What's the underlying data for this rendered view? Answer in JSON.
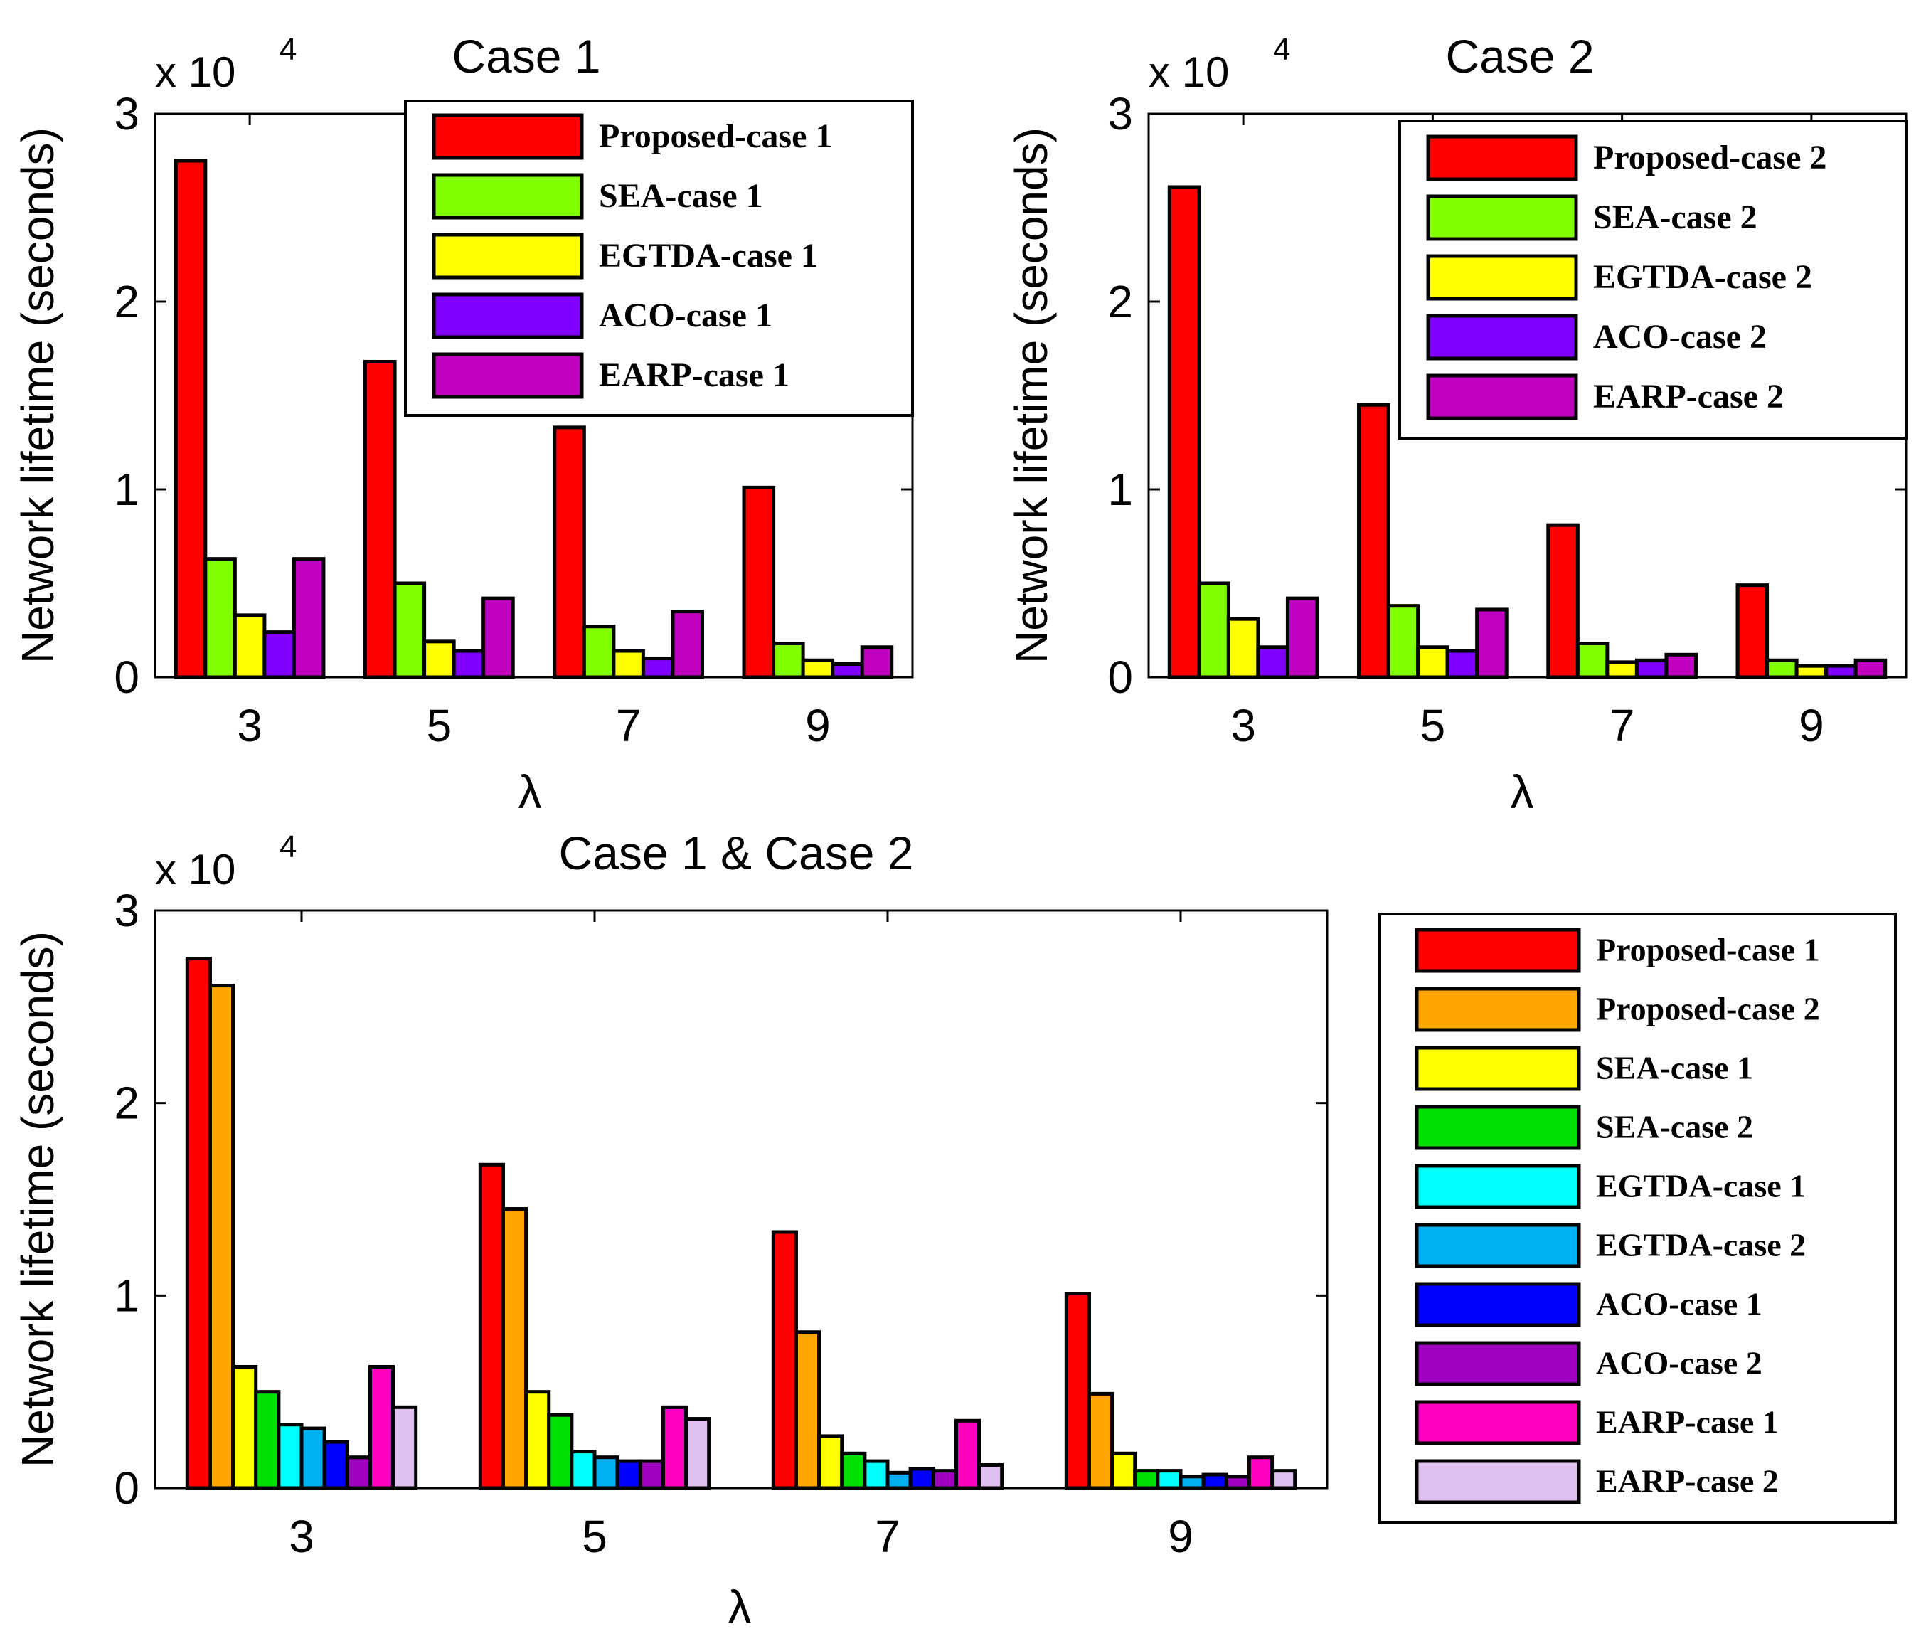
{
  "chart_data": [
    {
      "type": "bar",
      "title": "Case 1",
      "xlabel": "λ",
      "ylabel": "Network lifetime (seconds)",
      "exponent_label": "x 10",
      "exponent_power": "4",
      "ylim": [
        0,
        3
      ],
      "yticks": [
        "0",
        "1",
        "2",
        "3"
      ],
      "categories": [
        "3",
        "5",
        "7",
        "9"
      ],
      "series": [
        {
          "name": "Proposed-case 1",
          "color": "#ff0000",
          "values": [
            2.75,
            1.68,
            1.33,
            1.01
          ]
        },
        {
          "name": "SEA-case 1",
          "color": "#80ff00",
          "values": [
            0.63,
            0.5,
            0.27,
            0.18
          ]
        },
        {
          "name": "EGTDA-case 1",
          "color": "#ffff00",
          "values": [
            0.33,
            0.19,
            0.14,
            0.09
          ]
        },
        {
          "name": "ACO-case 1",
          "color": "#8000ff",
          "values": [
            0.24,
            0.14,
            0.1,
            0.07
          ]
        },
        {
          "name": "EARP-case 1",
          "color": "#bf00bf",
          "values": [
            0.63,
            0.42,
            0.35,
            0.16
          ]
        }
      ],
      "legend_position": "top-right"
    },
    {
      "type": "bar",
      "title": "Case 2",
      "xlabel": "λ",
      "ylabel": "Network lifetime (seconds)",
      "exponent_label": "x 10",
      "exponent_power": "4",
      "ylim": [
        0,
        3
      ],
      "yticks": [
        "0",
        "1",
        "2",
        "3"
      ],
      "categories": [
        "3",
        "5",
        "7",
        "9"
      ],
      "series": [
        {
          "name": "Proposed-case 2",
          "color": "#ff0000",
          "values": [
            2.61,
            1.45,
            0.81,
            0.49
          ]
        },
        {
          "name": "SEA-case 2",
          "color": "#80ff00",
          "values": [
            0.5,
            0.38,
            0.18,
            0.09
          ]
        },
        {
          "name": "EGTDA-case 2",
          "color": "#ffff00",
          "values": [
            0.31,
            0.16,
            0.08,
            0.06
          ]
        },
        {
          "name": "ACO-case 2",
          "color": "#8000ff",
          "values": [
            0.16,
            0.14,
            0.09,
            0.06
          ]
        },
        {
          "name": "EARP-case 2",
          "color": "#bf00bf",
          "values": [
            0.42,
            0.36,
            0.12,
            0.09
          ]
        }
      ],
      "legend_position": "top-right"
    },
    {
      "type": "bar",
      "title": "Case 1 & Case 2",
      "xlabel": "λ",
      "ylabel": "Network lifetime (seconds)",
      "exponent_label": "x 10",
      "exponent_power": "4",
      "ylim": [
        0,
        3
      ],
      "yticks": [
        "0",
        "1",
        "2",
        "3"
      ],
      "categories": [
        "3",
        "5",
        "7",
        "9"
      ],
      "series": [
        {
          "name": "Proposed-case 1",
          "color": "#ff0000",
          "values": [
            2.75,
            1.68,
            1.33,
            1.01
          ]
        },
        {
          "name": "Proposed-case 2",
          "color": "#ffa500",
          "values": [
            2.61,
            1.45,
            0.81,
            0.49
          ]
        },
        {
          "name": "SEA-case 1",
          "color": "#ffff00",
          "values": [
            0.63,
            0.5,
            0.27,
            0.18
          ]
        },
        {
          "name": "SEA-case 2",
          "color": "#00e000",
          "values": [
            0.5,
            0.38,
            0.18,
            0.09
          ]
        },
        {
          "name": "EGTDA-case 1",
          "color": "#00ffff",
          "values": [
            0.33,
            0.19,
            0.14,
            0.09
          ]
        },
        {
          "name": "EGTDA-case 2",
          "color": "#00b0f0",
          "values": [
            0.31,
            0.16,
            0.08,
            0.06
          ]
        },
        {
          "name": "ACO-case 1",
          "color": "#0000ff",
          "values": [
            0.24,
            0.14,
            0.1,
            0.07
          ]
        },
        {
          "name": "ACO-case 2",
          "color": "#a000c0",
          "values": [
            0.16,
            0.14,
            0.09,
            0.06
          ]
        },
        {
          "name": "EARP-case 1",
          "color": "#ff00c0",
          "values": [
            0.63,
            0.42,
            0.35,
            0.16
          ]
        },
        {
          "name": "EARP-case 2",
          "color": "#e0c0f0",
          "values": [
            0.42,
            0.36,
            0.12,
            0.09
          ]
        }
      ],
      "legend_position": "outside-right"
    }
  ]
}
